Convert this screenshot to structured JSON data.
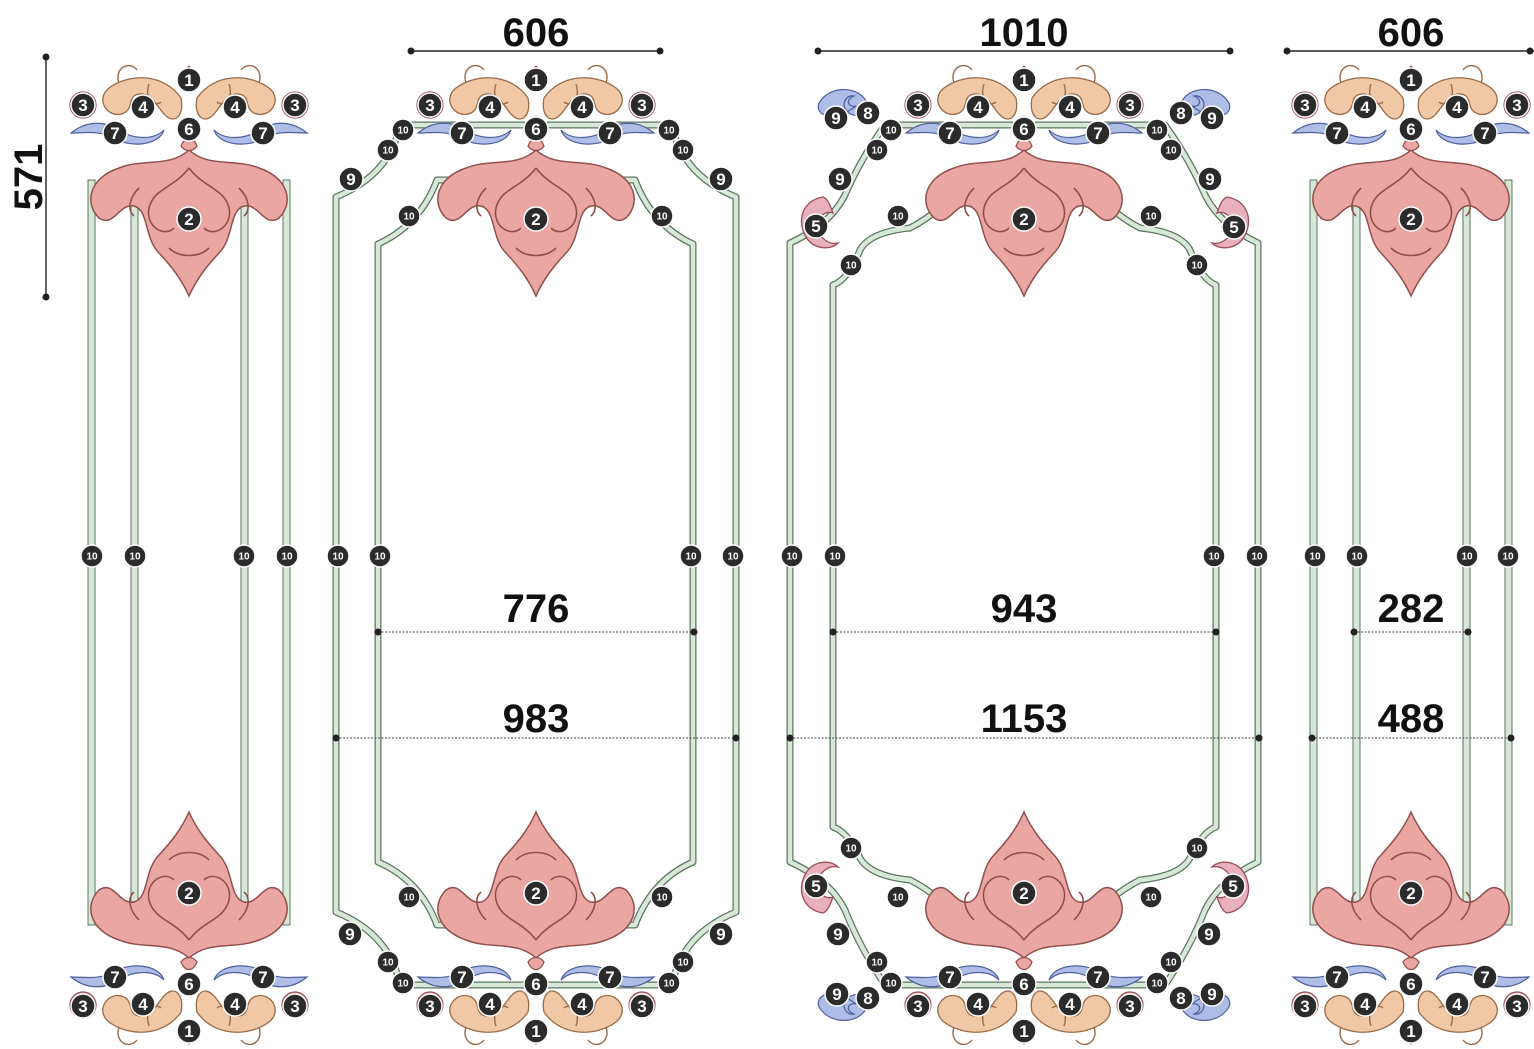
{
  "colors": {
    "molding_fill": "#d7e9d6",
    "molding_stroke": "#5a7560",
    "ornament_pink": "#eaa6a2",
    "ornament_peach": "#f1c8a6",
    "ornament_blue": "#aebde6",
    "ornament_rose": "#e8b0bc",
    "badge": "#2b2b2b",
    "dimension": "#111111"
  },
  "dimensions": {
    "top_left_width": "606",
    "top_center_width": "1010",
    "top_right_width": "606",
    "left_height": "571",
    "panel2_inner": "776",
    "panel2_outer": "983",
    "panel3_inner": "943",
    "panel3_outer": "1153",
    "panel4_inner": "282",
    "panel4_outer": "488"
  },
  "badges": {
    "b1": "1",
    "b2": "2",
    "b3": "3",
    "b4": "4",
    "b5": "5",
    "b6": "6",
    "b7": "7",
    "b8": "8",
    "b9": "9",
    "b10": "10"
  }
}
